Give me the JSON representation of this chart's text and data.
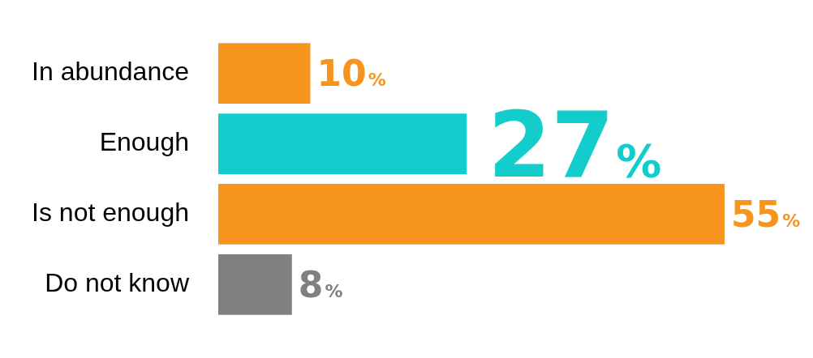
{
  "chart_data": {
    "type": "bar",
    "orientation": "horizontal",
    "categories": [
      "In abundance",
      "Enough",
      "Is not enough",
      "Do not know"
    ],
    "values": [
      10,
      27,
      55,
      8
    ],
    "colors": [
      "#f7941d",
      "#13cdcd",
      "#f7941d",
      "#808080"
    ],
    "value_labels": [
      "10%",
      "27%",
      "55%",
      "8%"
    ],
    "grid": false,
    "legend": false,
    "tick_labels": "y"
  }
}
